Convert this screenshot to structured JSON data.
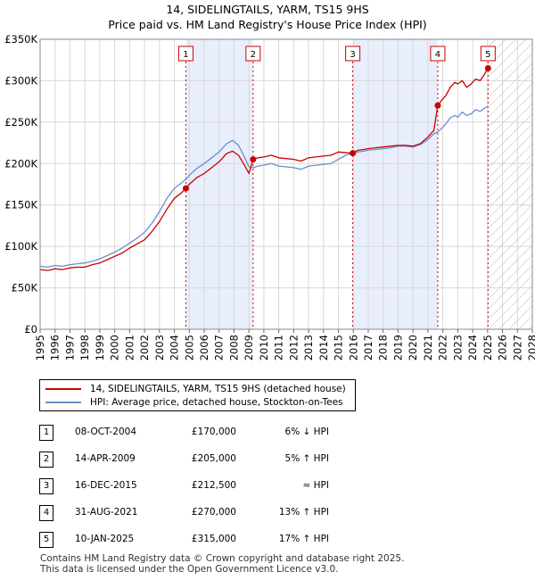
{
  "chart_data": {
    "type": "line",
    "title": "14, SIDELINGTAILS, YARM, TS15 9HS",
    "subtitle": "Price paid vs. HM Land Registry's House Price Index (HPI)",
    "xlabel": "",
    "ylabel": "",
    "xlim": [
      1995,
      2028
    ],
    "ylim": [
      0,
      350000
    ],
    "x_ticks": [
      "1995",
      "1996",
      "1997",
      "1998",
      "1999",
      "2000",
      "2001",
      "2002",
      "2003",
      "2004",
      "2005",
      "2006",
      "2007",
      "2008",
      "2009",
      "2010",
      "2011",
      "2012",
      "2013",
      "2014",
      "2015",
      "2016",
      "2017",
      "2018",
      "2019",
      "2020",
      "2021",
      "2022",
      "2023",
      "2024",
      "2025",
      "2026",
      "2027",
      "2028"
    ],
    "y_ticks": [
      {
        "value": 0,
        "label": "£0"
      },
      {
        "value": 50000,
        "label": "£50K"
      },
      {
        "value": 100000,
        "label": "£100K"
      },
      {
        "value": 150000,
        "label": "£150K"
      },
      {
        "value": 200000,
        "label": "£200K"
      },
      {
        "value": 250000,
        "label": "£250K"
      },
      {
        "value": 300000,
        "label": "£300K"
      },
      {
        "value": 350000,
        "label": "£350K"
      }
    ],
    "hatched_from": 2025.1,
    "series": [
      {
        "name": "14, SIDELINGTAILS, YARM, TS15 9HS (detached house)",
        "color": "#cc0000",
        "x": [
          1995.0,
          1995.5,
          1996.0,
          1996.5,
          1997.0,
          1997.5,
          1998.0,
          1998.5,
          1999.0,
          1999.5,
          2000.0,
          2000.5,
          2001.0,
          2001.5,
          2002.0,
          2002.5,
          2003.0,
          2003.5,
          2004.0,
          2004.5,
          2004.77,
          2005.0,
          2005.5,
          2006.0,
          2006.5,
          2007.0,
          2007.5,
          2007.9,
          2008.3,
          2008.7,
          2009.0,
          2009.28,
          2009.6,
          2010.0,
          2010.5,
          2011.0,
          2011.5,
          2012.0,
          2012.5,
          2013.0,
          2013.5,
          2014.0,
          2014.5,
          2015.0,
          2015.5,
          2015.96,
          2016.3,
          2016.7,
          2017.0,
          2017.5,
          2018.0,
          2018.5,
          2019.0,
          2019.5,
          2020.0,
          2020.5,
          2021.0,
          2021.4,
          2021.66,
          2021.9,
          2022.2,
          2022.5,
          2022.8,
          2023.0,
          2023.3,
          2023.6,
          2023.9,
          2024.2,
          2024.5,
          2024.8,
          2025.03
        ],
        "y": [
          72000,
          71000,
          73000,
          72000,
          74000,
          75000,
          75000,
          78000,
          80000,
          84000,
          88000,
          92000,
          98000,
          103000,
          108000,
          118000,
          130000,
          145000,
          158000,
          165000,
          170000,
          175000,
          183000,
          188000,
          195000,
          202000,
          212000,
          215000,
          210000,
          198000,
          188000,
          205000,
          207000,
          208000,
          210000,
          207000,
          206000,
          205000,
          203000,
          207000,
          208000,
          209000,
          210000,
          214000,
          213000,
          212500,
          216000,
          217000,
          218000,
          219000,
          220000,
          221000,
          222000,
          222000,
          221000,
          224000,
          232000,
          240000,
          270000,
          276000,
          282000,
          292000,
          298000,
          296000,
          300000,
          292000,
          296000,
          302000,
          300000,
          308000,
          315000
        ]
      },
      {
        "name": "HPI: Average price, detached house, Stockton-on-Tees",
        "color": "#6b8fcc",
        "x": [
          1995.0,
          1995.5,
          1996.0,
          1996.5,
          1997.0,
          1997.5,
          1998.0,
          1998.5,
          1999.0,
          1999.5,
          2000.0,
          2000.5,
          2001.0,
          2001.5,
          2002.0,
          2002.5,
          2003.0,
          2003.5,
          2004.0,
          2004.5,
          2004.77,
          2005.0,
          2005.5,
          2006.0,
          2006.5,
          2007.0,
          2007.5,
          2007.9,
          2008.3,
          2008.7,
          2009.0,
          2009.28,
          2009.6,
          2010.0,
          2010.5,
          2011.0,
          2011.5,
          2012.0,
          2012.5,
          2013.0,
          2013.5,
          2014.0,
          2014.5,
          2015.0,
          2015.5,
          2015.96,
          2016.3,
          2016.7,
          2017.0,
          2017.5,
          2018.0,
          2018.5,
          2019.0,
          2019.5,
          2020.0,
          2020.5,
          2021.0,
          2021.4,
          2021.66,
          2021.9,
          2022.2,
          2022.5,
          2022.8,
          2023.0,
          2023.3,
          2023.6,
          2023.9,
          2024.2,
          2024.5,
          2024.8,
          2025.03
        ],
        "y": [
          76000,
          75000,
          77000,
          76000,
          78000,
          79000,
          80000,
          82000,
          85000,
          89000,
          93000,
          98000,
          104000,
          110000,
          117000,
          128000,
          142000,
          158000,
          170000,
          177000,
          181000,
          186000,
          194000,
          200000,
          207000,
          214000,
          224000,
          228000,
          222000,
          208000,
          196000,
          195000,
          197000,
          198000,
          200000,
          197000,
          196000,
          195000,
          193000,
          197000,
          198000,
          199000,
          200000,
          205000,
          210000,
          212500,
          214000,
          215000,
          216000,
          217000,
          218000,
          219000,
          221000,
          221000,
          220000,
          223000,
          229000,
          236000,
          238000,
          242000,
          248000,
          255000,
          258000,
          256000,
          262000,
          258000,
          260000,
          265000,
          263000,
          267000,
          269000
        ]
      }
    ],
    "sales": [
      {
        "n": "1",
        "x": 2004.77,
        "date": "08-OCT-2004",
        "price": "£170,000",
        "price_value": 170000,
        "hpi": "6% ↓ HPI"
      },
      {
        "n": "2",
        "x": 2009.28,
        "date": "14-APR-2009",
        "price": "£205,000",
        "price_value": 205000,
        "hpi": "5% ↑ HPI"
      },
      {
        "n": "3",
        "x": 2015.96,
        "date": "16-DEC-2015",
        "price": "£212,500",
        "price_value": 212500,
        "hpi": "≈ HPI"
      },
      {
        "n": "4",
        "x": 2021.66,
        "date": "31-AUG-2021",
        "price": "£270,000",
        "price_value": 270000,
        "hpi": "13% ↑ HPI"
      },
      {
        "n": "5",
        "x": 2025.03,
        "date": "10-JAN-2025",
        "price": "£315,000",
        "price_value": 315000,
        "hpi": "17% ↑ HPI"
      }
    ],
    "highlight_bands": [
      [
        2004.77,
        2009.28
      ],
      [
        2015.96,
        2021.66
      ]
    ]
  },
  "footer": {
    "line1": "Contains HM Land Registry data © Crown copyright and database right 2025.",
    "line2": "This data is licensed under the Open Government Licence v3.0."
  },
  "colors": {
    "property": "#cc0000",
    "hpi": "#6b8fcc",
    "band": "#e8eefb",
    "grid": "#d8d8d8"
  }
}
